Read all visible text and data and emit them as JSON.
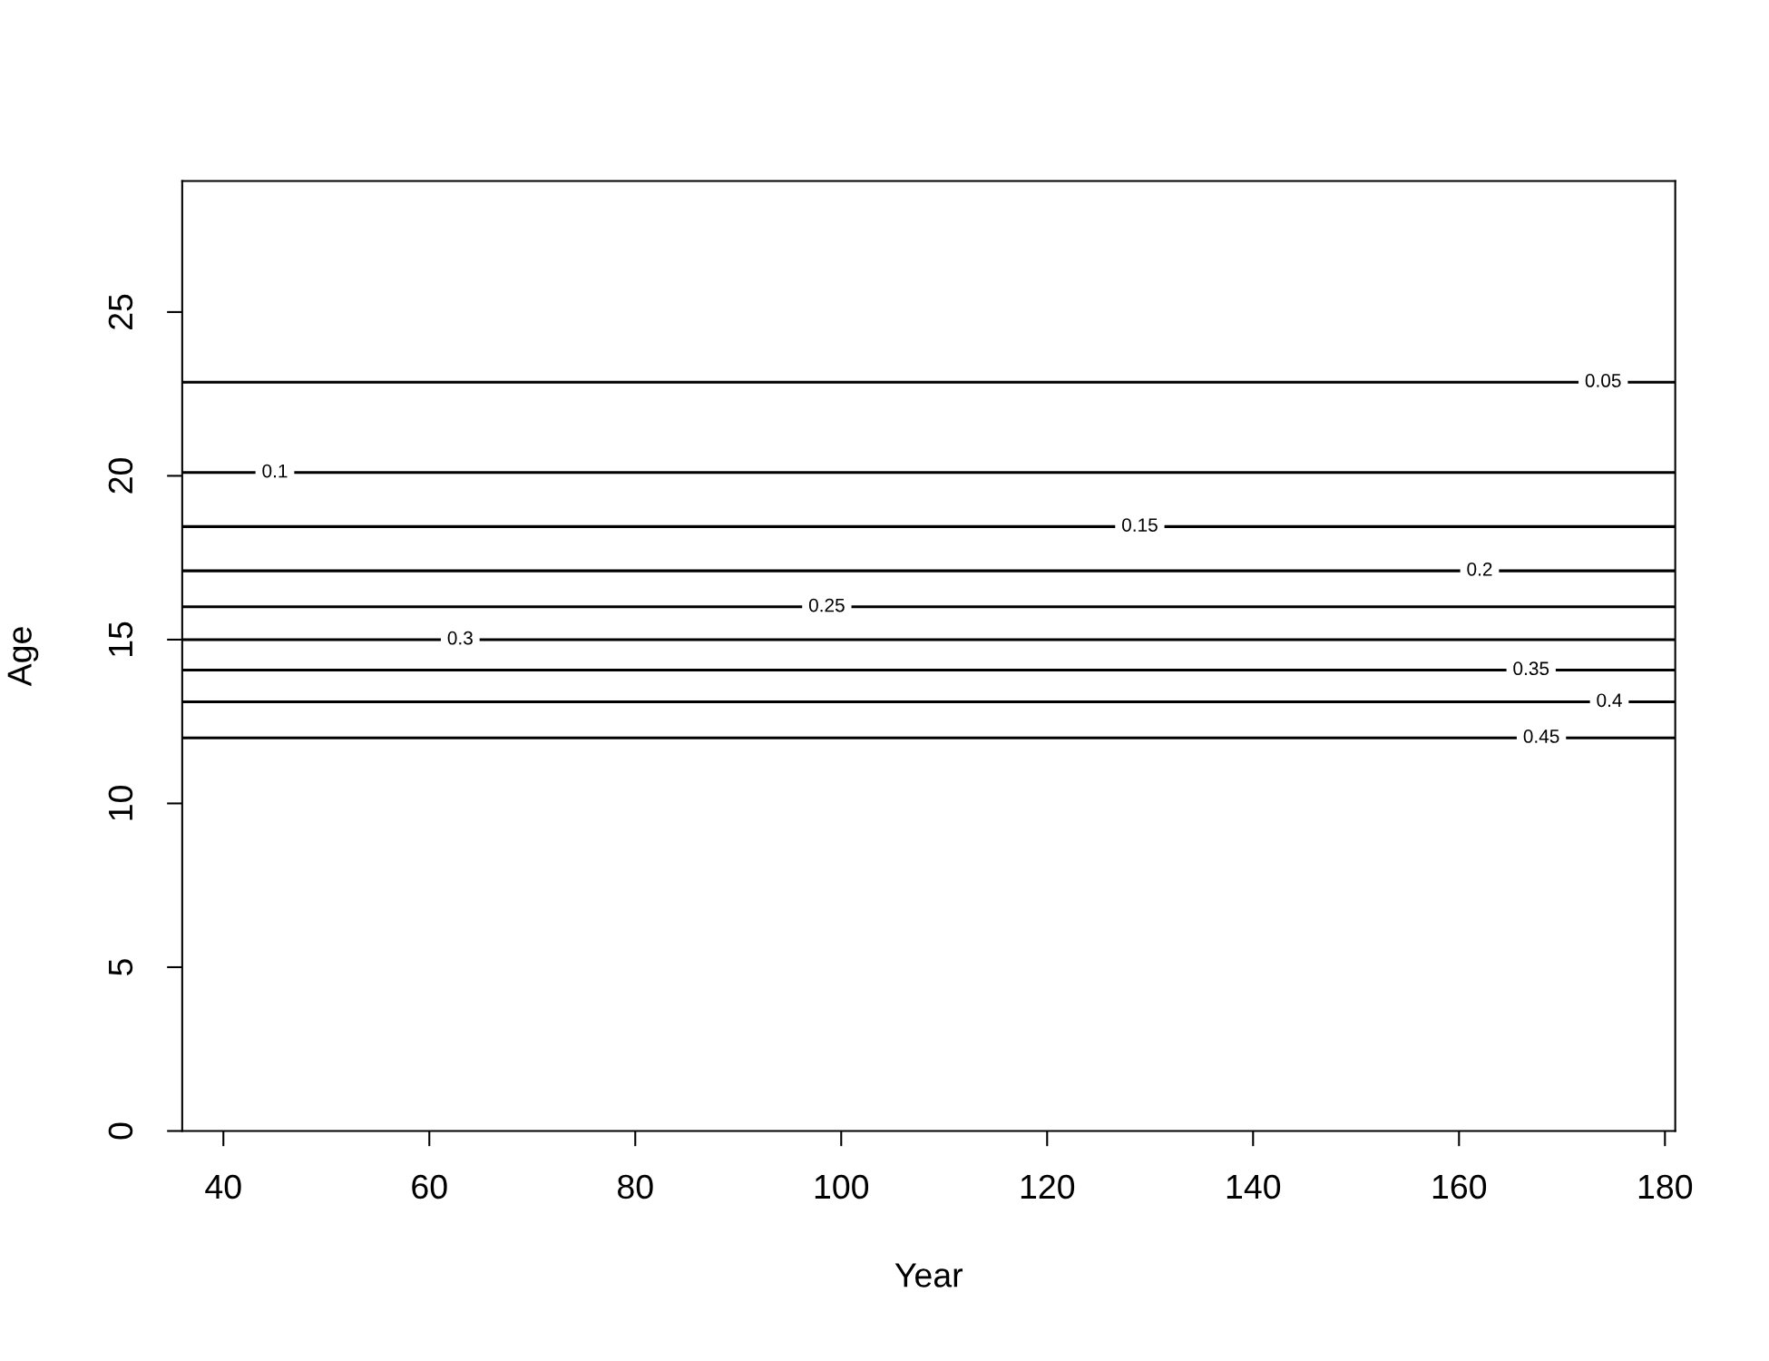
{
  "chart_data": {
    "type": "line",
    "xlabel": "Year",
    "ylabel": "Age",
    "x": [
      36,
      181
    ],
    "series": [
      {
        "color": "#000000",
        "values": [
          22.86,
          22.86
        ]
      },
      {
        "color": "#000000",
        "values": [
          20.1,
          20.1
        ]
      },
      {
        "color": "#000000",
        "values": [
          18.45,
          18.45
        ]
      },
      {
        "color": "#000000",
        "values": [
          17.1,
          17.1
        ]
      },
      {
        "color": "#000000",
        "values": [
          16.0,
          16.0
        ]
      },
      {
        "color": "#000000",
        "values": [
          15.0,
          15.0
        ]
      },
      {
        "color": "#000000",
        "values": [
          14.07,
          14.07
        ]
      },
      {
        "color": "#000000",
        "values": [
          13.1,
          13.1
        ]
      },
      {
        "color": "#000000",
        "values": [
          12.0,
          12.0
        ]
      }
    ],
    "annotations": [
      {
        "text": "0.05",
        "x": 174,
        "y": 22.86
      },
      {
        "text": "0.1",
        "x": 45,
        "y": 20.1
      },
      {
        "text": "0.15",
        "x": 129,
        "y": 18.45
      },
      {
        "text": "0.2",
        "x": 162,
        "y": 17.1
      },
      {
        "text": "0.25",
        "x": 98.6,
        "y": 16.0
      },
      {
        "text": "0.3",
        "x": 63,
        "y": 15.0
      },
      {
        "text": "0.35",
        "x": 167,
        "y": 14.07
      },
      {
        "text": "0.4",
        "x": 174.6,
        "y": 13.1
      },
      {
        "text": "0.45",
        "x": 168,
        "y": 12.0
      }
    ],
    "xlim": [
      36,
      181
    ],
    "ylim": [
      0,
      29
    ],
    "xticks": [
      40,
      60,
      80,
      100,
      120,
      140,
      160,
      180
    ],
    "yticks": [
      0,
      5,
      10,
      15,
      20,
      25
    ],
    "grid": false,
    "marker": "none",
    "line_style": "solid"
  }
}
